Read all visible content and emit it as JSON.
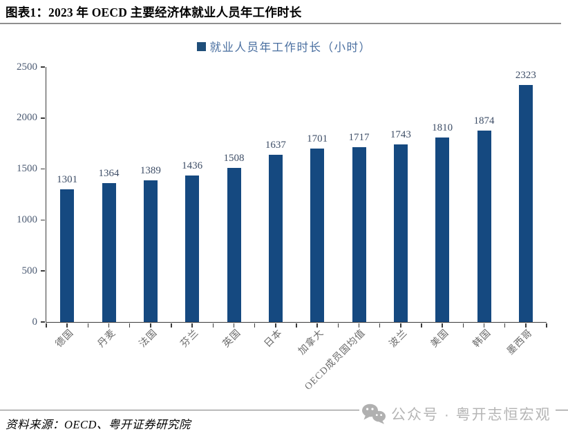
{
  "title": "图表1：2023 年 OECD 主要经济体就业人员年工作时长",
  "source_note": "资料来源：OECD、粤开证券研究院",
  "watermark": {
    "icon": "wechat-icon",
    "label": "公众号 · 粤开志恒宏观"
  },
  "colors": {
    "bar": "#154980",
    "legend_swatch": "#1F4E79",
    "legend_text": "#4a6fa0",
    "axis_tick_label": "#4c5b73",
    "value_label": "#3d4d66",
    "category_label": "#6b6b6b",
    "watermark_gray": "#b5b5b5"
  },
  "chart_data": {
    "type": "bar",
    "title": "2023 年 OECD 主要经济体就业人员年工作时长",
    "legend": [
      "就业人员年工作时长（小时）"
    ],
    "legend_position": "top-center",
    "categories": [
      "德国",
      "丹麦",
      "法国",
      "芬兰",
      "英国",
      "日本",
      "加拿大",
      "OECD成员国均值",
      "波兰",
      "美国",
      "韩国",
      "墨西哥"
    ],
    "values": [
      1301,
      1364,
      1389,
      1436,
      1508,
      1637,
      1701,
      1717,
      1743,
      1810,
      1874,
      2323
    ],
    "xlabel": "",
    "ylabel": "",
    "ylim": [
      0,
      2500
    ],
    "yticks": [
      0,
      500,
      1000,
      1500,
      2000,
      2500
    ],
    "grid": false,
    "data_labels": true,
    "category_label_rotation_deg": 45
  }
}
